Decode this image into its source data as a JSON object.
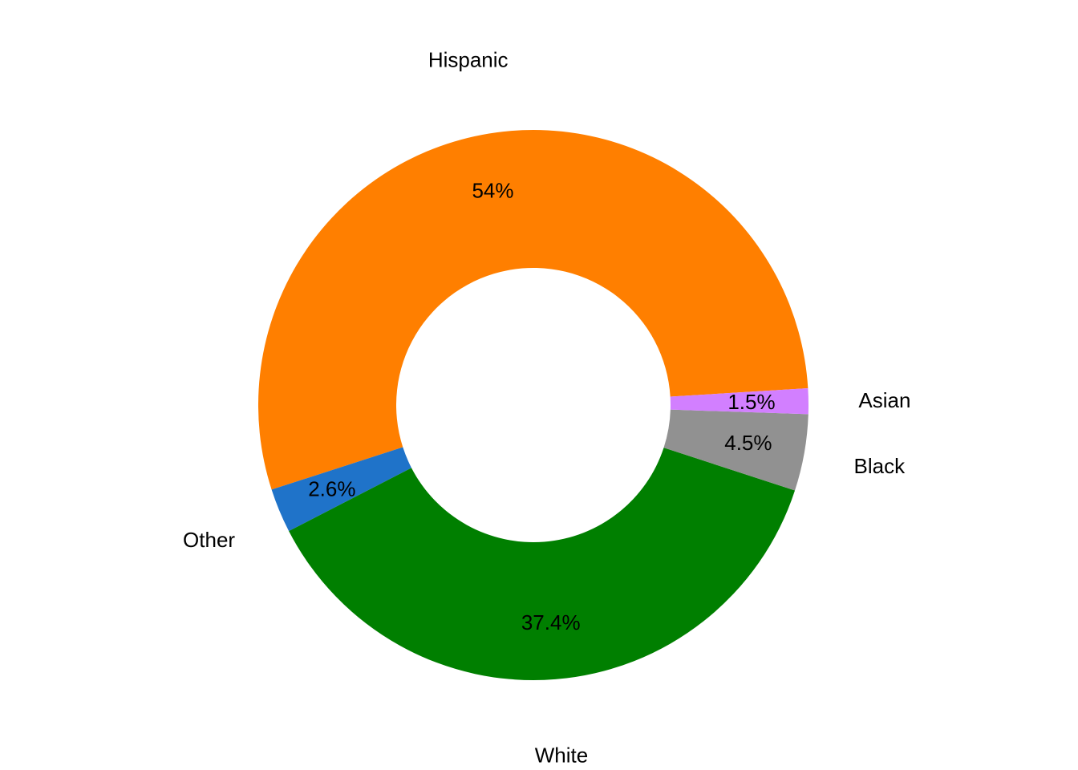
{
  "chart_data": {
    "type": "pie",
    "variant": "donut",
    "title": "",
    "slices": [
      {
        "label": "Hispanic",
        "value": 54.0,
        "display": "54%",
        "color": "#FF7F00"
      },
      {
        "label": "Other",
        "value": 2.6,
        "display": "2.6%",
        "color": "#1F73C9"
      },
      {
        "label": "White",
        "value": 37.4,
        "display": "37.4%",
        "color": "#007F00"
      },
      {
        "label": "Black",
        "value": 4.5,
        "display": "4.5%",
        "color": "#919191"
      },
      {
        "label": "Asian",
        "value": 1.5,
        "display": "1.5%",
        "color": "#D27FFF"
      }
    ],
    "legend": "none"
  }
}
